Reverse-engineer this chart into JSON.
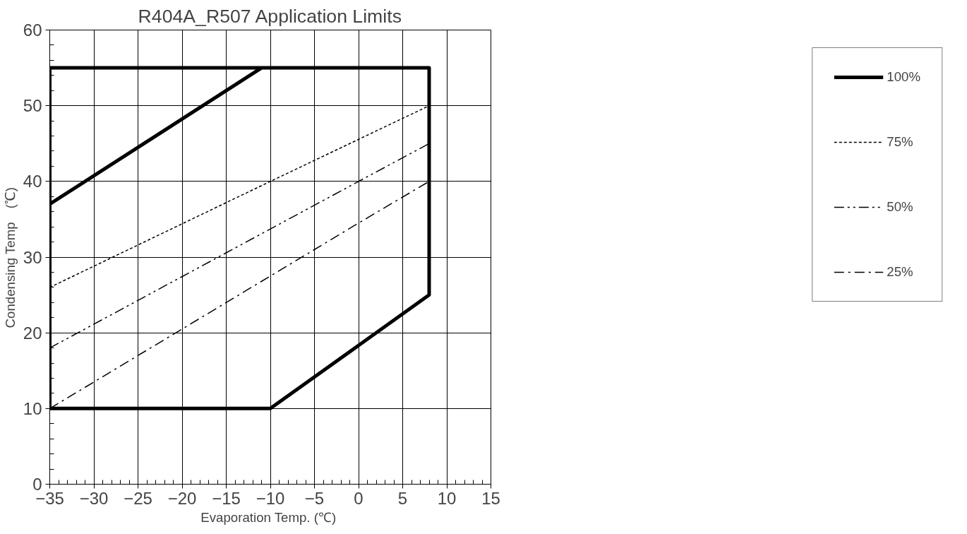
{
  "chart_data": {
    "type": "line",
    "title": "R404A_R507 Application Limits",
    "xlabel": "Evaporation  Temp. (℃)",
    "ylabel": "Condensing Temp　(℃)",
    "xlim": [
      -35,
      15
    ],
    "xticks": [
      -35,
      -30,
      -25,
      -20,
      -15,
      -10,
      -5,
      0,
      5,
      10,
      15
    ],
    "ylim": [
      0,
      60
    ],
    "yticks": [
      0,
      10,
      20,
      30,
      40,
      50,
      60
    ],
    "grid": true,
    "legend": "right",
    "series": [
      {
        "name": "100%",
        "color": "#000000",
        "line_style": "solid",
        "x": [
          -11,
          -35,
          -35,
          -10,
          8,
          8,
          -35,
          -35
        ],
        "values": [
          55,
          37,
          10,
          10,
          25,
          55,
          55,
          37
        ]
      },
      {
        "name": "75%",
        "color": "#000000",
        "line_style": "dashed",
        "x": [
          -35,
          -10,
          8
        ],
        "values": [
          26,
          40,
          50
        ]
      },
      {
        "name": "50%",
        "color": "#000000",
        "line_style": "dashdotdot",
        "x": [
          -35,
          0,
          8
        ],
        "values": [
          18,
          40,
          45
        ]
      },
      {
        "name": "25%",
        "color": "#000000",
        "line_style": "dashdot",
        "x": [
          -35,
          0,
          8
        ],
        "values": [
          10,
          34.5,
          40
        ]
      }
    ]
  }
}
